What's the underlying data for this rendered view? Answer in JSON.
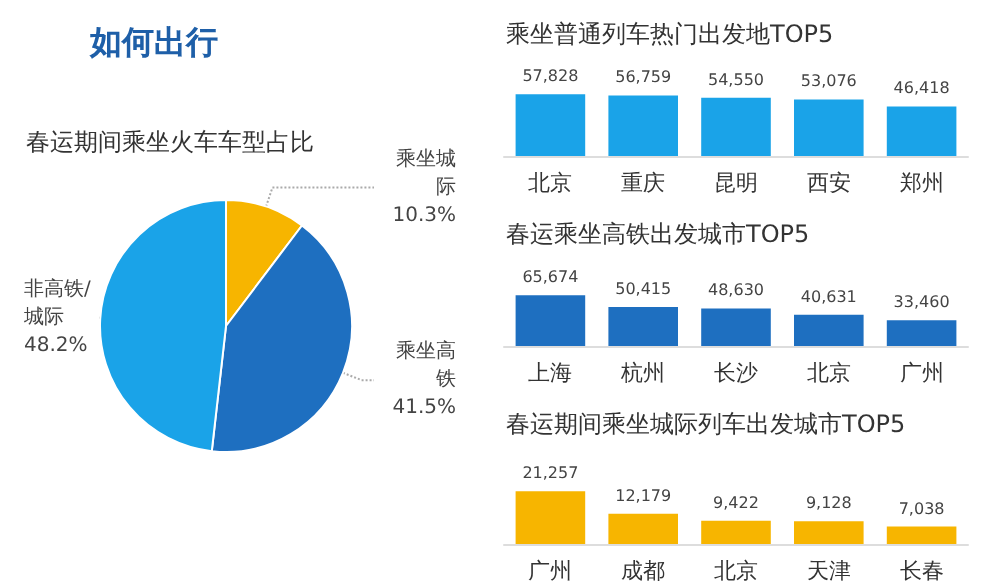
{
  "chart_data": [
    {
      "type": "pie",
      "title": "如何出行",
      "subtitle": "春运期间乘坐火车车型占比",
      "categories": [
        "乘坐城际",
        "乘坐高铁",
        "非高铁/城际"
      ],
      "values": [
        10.3,
        41.5,
        48.2
      ],
      "value_labels": [
        "10.3%",
        "41.5%",
        "48.2%"
      ],
      "colors": [
        "#f7b500",
        "#1e6fc0",
        "#1aa3e8"
      ],
      "legend": false
    },
    {
      "type": "bar",
      "title": "乘坐普通列车热门出发地TOP5",
      "categories": [
        "北京",
        "重庆",
        "昆明",
        "西安",
        "郑州"
      ],
      "values": [
        57828,
        56759,
        54550,
        53076,
        46418
      ],
      "value_labels": [
        "57,828",
        "56,759",
        "54,550",
        "53,076",
        "46,418"
      ],
      "color": "#1aa3e8",
      "legend": false,
      "tick_labels": "x"
    },
    {
      "type": "bar",
      "title": "春运乘坐高铁出发城市TOP5",
      "categories": [
        "上海",
        "杭州",
        "长沙",
        "北京",
        "广州"
      ],
      "values": [
        65674,
        50415,
        48630,
        40631,
        33460
      ],
      "value_labels": [
        "65,674",
        "50,415",
        "48,630",
        "40,631",
        "33,460"
      ],
      "color": "#1e6fc0",
      "legend": false,
      "tick_labels": "x"
    },
    {
      "type": "bar",
      "title": "春运期间乘坐城际列车出发城市TOP5",
      "categories": [
        "广州",
        "成都",
        "北京",
        "天津",
        "长春"
      ],
      "values": [
        21257,
        12179,
        9422,
        9128,
        7038
      ],
      "value_labels": [
        "21,257",
        "12,179",
        "9,422",
        "9,128",
        "7,038"
      ],
      "color": "#f7b500",
      "legend": false,
      "tick_labels": "x"
    }
  ]
}
